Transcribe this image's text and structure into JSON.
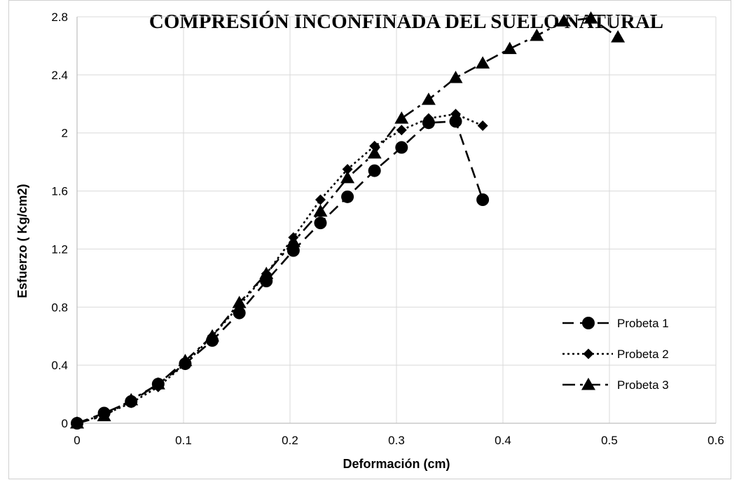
{
  "chart_data": {
    "type": "line",
    "title": "COMPRESIÓN INCONFINADA DEL SUELO NATURAL",
    "xlabel": "Deformación (cm)",
    "ylabel": "Esfuerzo ( Kg/cm2)",
    "xlim": [
      0,
      0.6
    ],
    "ylim": [
      0,
      2.8
    ],
    "xticks": [
      "0",
      "0.1",
      "0.2",
      "0.3",
      "0.4",
      "0.5",
      "0.6"
    ],
    "yticks": [
      "0",
      "0.4",
      "0.8",
      "1.2",
      "1.6",
      "2",
      "2.4",
      "2.8"
    ],
    "grid": "vertical and horizontal",
    "legend_position": "bottom-right",
    "series": [
      {
        "name": "Probeta 1",
        "marker": "circle",
        "line_style": "dashed",
        "x": [
          0,
          0.0254,
          0.0508,
          0.0762,
          0.1016,
          0.127,
          0.1524,
          0.1778,
          0.2032,
          0.2286,
          0.254,
          0.2794,
          0.3048,
          0.3302,
          0.3556,
          0.381
        ],
        "y": [
          0,
          0.07,
          0.15,
          0.27,
          0.41,
          0.57,
          0.76,
          0.98,
          1.19,
          1.38,
          1.56,
          1.74,
          1.9,
          2.07,
          2.08,
          1.54
        ]
      },
      {
        "name": "Probeta 2",
        "marker": "diamond",
        "line_style": "dotted",
        "x": [
          0,
          0.0254,
          0.0508,
          0.0762,
          0.1016,
          0.127,
          0.1524,
          0.1778,
          0.2032,
          0.2286,
          0.254,
          0.2794,
          0.3048,
          0.3302,
          0.3556,
          0.381
        ],
        "y": [
          0,
          0.06,
          0.14,
          0.25,
          0.41,
          0.6,
          0.81,
          1.03,
          1.28,
          1.54,
          1.75,
          1.91,
          2.02,
          2.1,
          2.13,
          2.05
        ]
      },
      {
        "name": "Probeta 3",
        "marker": "triangle",
        "line_style": "dash-dot",
        "x": [
          0,
          0.0254,
          0.0508,
          0.0762,
          0.1016,
          0.127,
          0.1524,
          0.1778,
          0.2032,
          0.2286,
          0.254,
          0.2794,
          0.3048,
          0.3302,
          0.3556,
          0.381,
          0.4064,
          0.4318,
          0.4572,
          0.4826,
          0.508
        ],
        "y": [
          0,
          0.05,
          0.16,
          0.27,
          0.43,
          0.6,
          0.83,
          1.03,
          1.25,
          1.46,
          1.69,
          1.86,
          2.1,
          2.23,
          2.38,
          2.48,
          2.58,
          2.67,
          2.77,
          2.79,
          2.66
        ]
      }
    ]
  }
}
